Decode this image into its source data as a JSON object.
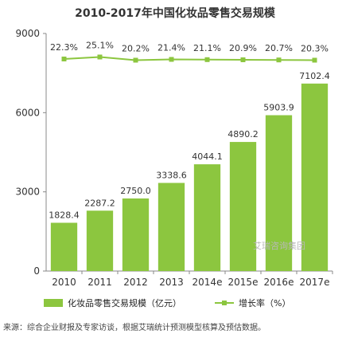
{
  "chart_data": {
    "type": "bar",
    "title": "2010-2017年中国化妆品零售交易规模",
    "categories": [
      "2010",
      "2011",
      "2012",
      "2013",
      "2014e",
      "2015e",
      "2016e",
      "2017e"
    ],
    "ylim": [
      0,
      9000
    ],
    "yticks": [
      0,
      3000,
      6000,
      9000
    ],
    "grid": false,
    "legend_position": "bottom",
    "series": [
      {
        "name": "化妆品零售交易规模（亿元）",
        "type": "bar",
        "values": [
          1828.4,
          2287.2,
          2750.0,
          3338.6,
          4044.1,
          4890.2,
          5903.9,
          7102.4
        ],
        "labels": [
          "1828.4",
          "2287.2",
          "2750.0",
          "3338.6",
          "4044.1",
          "4890.2",
          "5903.9",
          "7102.4"
        ]
      },
      {
        "name": "增长率（%）",
        "type": "line",
        "values": [
          22.3,
          25.1,
          20.2,
          21.4,
          21.1,
          20.9,
          20.7,
          20.3
        ],
        "labels": [
          "22.3%",
          "25.1%",
          "20.2%",
          "21.4%",
          "21.1%",
          "20.9%",
          "20.7%",
          "20.3%"
        ]
      }
    ]
  },
  "source": "来源：综合企业财报及专家访谈，根据艾瑞统计预测模型核算及预估数据。",
  "watermark": "艾瑞咨询集团",
  "colors": {
    "bar": "#8cc63f",
    "line": "#8cc63f",
    "axis": "#888888",
    "text": "#333333"
  }
}
